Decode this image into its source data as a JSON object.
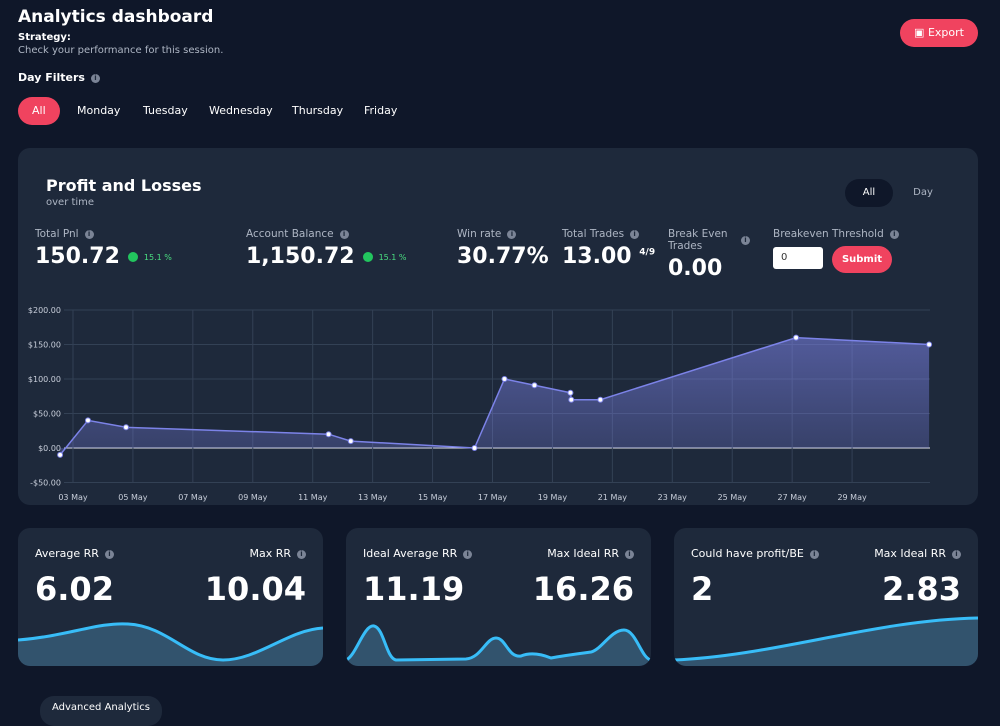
{
  "header": {
    "title": "Analytics dashboard",
    "strategy": "Strategy:",
    "subtitle": "Check your performance for this session.",
    "export": "Export"
  },
  "filters": {
    "label": "Day Filters",
    "days": [
      "All",
      "Monday",
      "Tuesday",
      "Wednesday",
      "Thursday",
      "Friday"
    ]
  },
  "pnl_card": {
    "title": "Profit and Losses",
    "subtitle": "over time",
    "toggle": [
      "All",
      "Day"
    ],
    "stats": [
      {
        "label": "Total Pnl",
        "value": "150.72",
        "change": "15.1 %"
      },
      {
        "label": "Account Balance",
        "value": "1,150.72",
        "change": "15.1 %"
      },
      {
        "label": "Win rate",
        "value": "30.77%"
      },
      {
        "label": "Total Trades",
        "value": "13.00",
        "note": "4/9"
      },
      {
        "label": "Break Even Trades",
        "value": "0.00"
      },
      {
        "label": "Breakeven Threshold",
        "input": "0",
        "button": "Submit"
      }
    ]
  },
  "chart_data": {
    "type": "area",
    "x": [
      2.57,
      3.5,
      4.77,
      11.53,
      12.27,
      16.4,
      17.4,
      18.4,
      19.6,
      19.63,
      20.6,
      27.13,
      31.57
    ],
    "values": [
      -10,
      40,
      30,
      20,
      10,
      0,
      100,
      91,
      80,
      70,
      70,
      160,
      150
    ],
    "color": "#7c83e8",
    "xlim": [
      2.5,
      31.6
    ],
    "xticks": [
      {
        "value": 3,
        "label": "03 May"
      },
      {
        "value": 5,
        "label": "05 May"
      },
      {
        "value": 7,
        "label": "07 May"
      },
      {
        "value": 9,
        "label": "09 May"
      },
      {
        "value": 11,
        "label": "11 May"
      },
      {
        "value": 13,
        "label": "13 May"
      },
      {
        "value": 15,
        "label": "15 May"
      },
      {
        "value": 17,
        "label": "17 May"
      },
      {
        "value": 19,
        "label": "19 May"
      },
      {
        "value": 21,
        "label": "21 May"
      },
      {
        "value": 23,
        "label": "23 May"
      },
      {
        "value": 25,
        "label": "25 May"
      },
      {
        "value": 27,
        "label": "27 May"
      },
      {
        "value": 29,
        "label": "29 May"
      }
    ],
    "ylim": [
      -50,
      200
    ],
    "yticks": [
      {
        "value": -50,
        "label": "-$50.00"
      },
      {
        "value": 0,
        "label": "$0.00"
      },
      {
        "value": 50,
        "label": "$50.00"
      },
      {
        "value": 100,
        "label": "$100.00"
      },
      {
        "value": 150,
        "label": "$150.00"
      },
      {
        "value": 200,
        "label": "$200.00"
      }
    ],
    "grid": true
  },
  "cards": [
    {
      "left": {
        "label": "Average RR",
        "value": "6.02"
      },
      "right": {
        "label": "Max RR",
        "value": "10.04"
      }
    },
    {
      "left": {
        "label": "Ideal Average RR",
        "value": "11.19"
      },
      "right": {
        "label": "Max Ideal RR",
        "value": "16.26"
      }
    },
    {
      "left": {
        "label": "Could have profit/BE",
        "value": "2"
      },
      "right": {
        "label": "Max Ideal RR",
        "value": "2.83"
      }
    }
  ],
  "footer": {
    "tab": "Advanced Analytics"
  }
}
